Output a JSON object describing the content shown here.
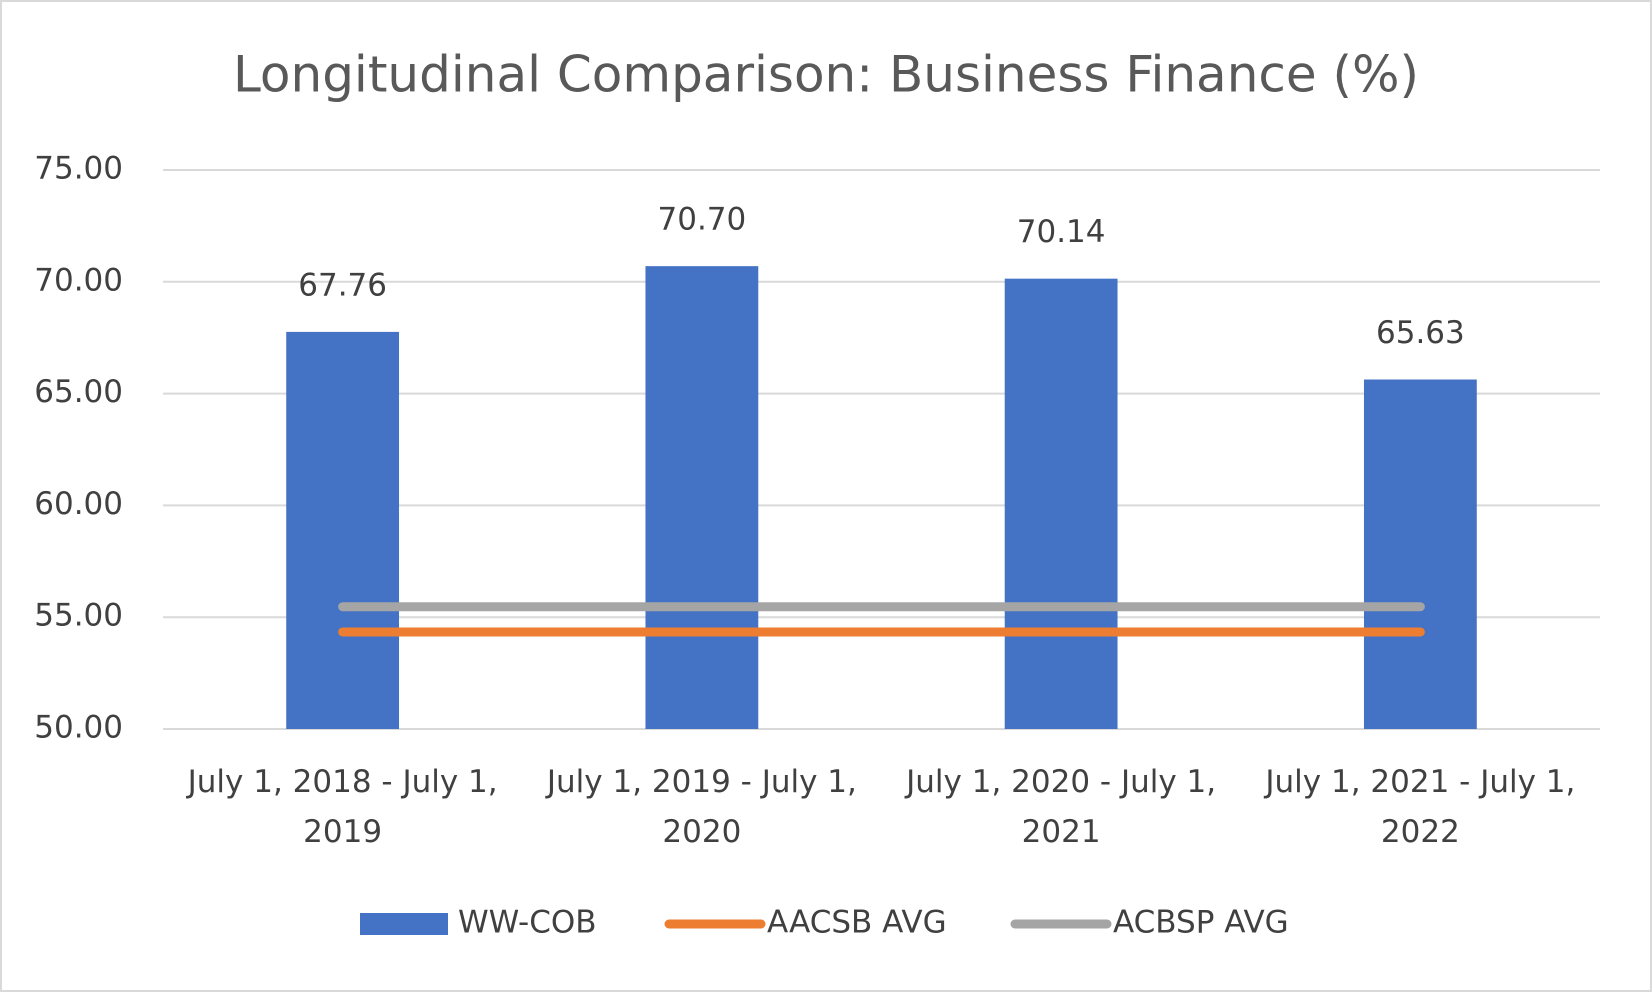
{
  "chart_data": {
    "type": "bar",
    "title": "Longitudinal Comparison: Business Finance (%)",
    "categories": [
      "July 1, 2018 - July 1, 2019",
      "July 1, 2019 - July 1, 2020",
      "July 1, 2020 - July 1, 2021",
      "July 1, 2021 - July 1, 2022"
    ],
    "series": [
      {
        "name": "WW-COB",
        "type": "bar",
        "color": "#4472c4",
        "values": [
          67.76,
          70.7,
          70.14,
          65.63
        ],
        "value_labels": [
          "67.76",
          "70.70",
          "70.14",
          "65.63"
        ]
      },
      {
        "name": "AACSB AVG",
        "type": "line",
        "color": "#ed7d31",
        "values": [
          54.34,
          54.34,
          54.34,
          54.34
        ]
      },
      {
        "name": "ACBSP AVG",
        "type": "line",
        "color": "#a5a5a5",
        "values": [
          55.47,
          55.47,
          55.47,
          55.47
        ]
      }
    ],
    "ylim": [
      50,
      75
    ],
    "yticks": [
      {
        "value": 50,
        "label": "50.00"
      },
      {
        "value": 55,
        "label": "55.00"
      },
      {
        "value": 60,
        "label": "60.00"
      },
      {
        "value": 65,
        "label": "65.00"
      },
      {
        "value": 70,
        "label": "70.00"
      },
      {
        "value": 75,
        "label": "75.00"
      }
    ],
    "grid": true,
    "legend": "bottom"
  }
}
